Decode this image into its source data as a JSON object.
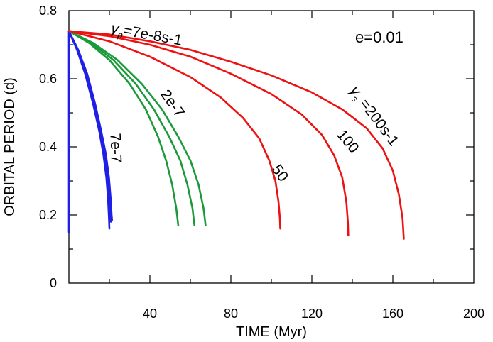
{
  "chart_data": {
    "type": "line",
    "xlabel": "TIME (Myr)",
    "ylabel": "ORBITAL PERIOD (d)",
    "xlim": [
      0,
      200
    ],
    "ylim": [
      0,
      0.8
    ],
    "x_ticks": [
      "40",
      "80",
      "120",
      "160",
      "200"
    ],
    "y_ticks": [
      "0",
      "0.2",
      "0.4",
      "0.6",
      "0.8"
    ],
    "grid": false,
    "eccentricity_label": "e=0.01",
    "colors": {
      "blue": "#1f1fe6",
      "green": "#1a9a3a",
      "red": "#ee1111"
    },
    "series": [
      {
        "group": "blue",
        "color": "#1f1fe6",
        "points": [
          [
            0,
            0.74
          ],
          [
            4,
            0.685
          ],
          [
            8,
            0.615
          ],
          [
            12,
            0.525
          ],
          [
            15,
            0.445
          ],
          [
            17,
            0.38
          ],
          [
            18.5,
            0.31
          ],
          [
            19.3,
            0.25
          ],
          [
            19.8,
            0.19
          ],
          [
            20,
            0.16
          ]
        ]
      },
      {
        "group": "blue",
        "color": "#1f1fe6",
        "points": [
          [
            0,
            0.74
          ],
          [
            4.3,
            0.685
          ],
          [
            8.5,
            0.615
          ],
          [
            12.5,
            0.525
          ],
          [
            15.5,
            0.445
          ],
          [
            17.6,
            0.38
          ],
          [
            19.2,
            0.31
          ],
          [
            20,
            0.25
          ],
          [
            20.5,
            0.2
          ],
          [
            20.7,
            0.18
          ]
        ]
      },
      {
        "group": "blue",
        "color": "#1f1fe6",
        "points": [
          [
            0,
            0.74
          ],
          [
            4.6,
            0.685
          ],
          [
            9,
            0.615
          ],
          [
            13,
            0.525
          ],
          [
            16,
            0.445
          ],
          [
            18.2,
            0.38
          ],
          [
            19.8,
            0.31
          ],
          [
            20.6,
            0.25
          ],
          [
            21.1,
            0.2
          ],
          [
            21.3,
            0.185
          ]
        ]
      },
      {
        "group": "blue",
        "color": "#1f1fe6",
        "points": [
          [
            0,
            0.74
          ],
          [
            0,
            0.15
          ]
        ]
      },
      {
        "group": "green",
        "color": "#1a9a3a",
        "points": [
          [
            0,
            0.74
          ],
          [
            10,
            0.705
          ],
          [
            20,
            0.655
          ],
          [
            30,
            0.585
          ],
          [
            38,
            0.51
          ],
          [
            44,
            0.43
          ],
          [
            48,
            0.36
          ],
          [
            51,
            0.29
          ],
          [
            53,
            0.22
          ],
          [
            54,
            0.17
          ]
        ]
      },
      {
        "group": "green",
        "color": "#1a9a3a",
        "points": [
          [
            0,
            0.74
          ],
          [
            11,
            0.705
          ],
          [
            22,
            0.655
          ],
          [
            33,
            0.585
          ],
          [
            42,
            0.51
          ],
          [
            49.5,
            0.43
          ],
          [
            55,
            0.36
          ],
          [
            58.5,
            0.29
          ],
          [
            61,
            0.22
          ],
          [
            62,
            0.17
          ]
        ]
      },
      {
        "group": "green",
        "color": "#1a9a3a",
        "points": [
          [
            0,
            0.74
          ],
          [
            12,
            0.705
          ],
          [
            24,
            0.655
          ],
          [
            36,
            0.585
          ],
          [
            46,
            0.51
          ],
          [
            54,
            0.43
          ],
          [
            60,
            0.36
          ],
          [
            64,
            0.29
          ],
          [
            66.5,
            0.22
          ],
          [
            67.5,
            0.17
          ]
        ]
      },
      {
        "group": "red",
        "color": "#ee1111",
        "points": [
          [
            0,
            0.74
          ],
          [
            20,
            0.71
          ],
          [
            40,
            0.665
          ],
          [
            60,
            0.605
          ],
          [
            75,
            0.545
          ],
          [
            86,
            0.485
          ],
          [
            94,
            0.425
          ],
          [
            99,
            0.36
          ],
          [
            102,
            0.3
          ],
          [
            103.5,
            0.24
          ],
          [
            104.2,
            0.19
          ],
          [
            104.4,
            0.16
          ]
        ]
      },
      {
        "group": "red",
        "color": "#ee1111",
        "points": [
          [
            0,
            0.74
          ],
          [
            20,
            0.725
          ],
          [
            40,
            0.7
          ],
          [
            60,
            0.665
          ],
          [
            80,
            0.615
          ],
          [
            100,
            0.555
          ],
          [
            115,
            0.495
          ],
          [
            125,
            0.435
          ],
          [
            131,
            0.375
          ],
          [
            135,
            0.31
          ],
          [
            137,
            0.24
          ],
          [
            137.8,
            0.18
          ],
          [
            138,
            0.14
          ]
        ]
      },
      {
        "group": "red",
        "color": "#ee1111",
        "points": [
          [
            0,
            0.74
          ],
          [
            20,
            0.73
          ],
          [
            40,
            0.71
          ],
          [
            60,
            0.685
          ],
          [
            80,
            0.65
          ],
          [
            100,
            0.61
          ],
          [
            120,
            0.56
          ],
          [
            135,
            0.51
          ],
          [
            147,
            0.455
          ],
          [
            155,
            0.395
          ],
          [
            160,
            0.33
          ],
          [
            163,
            0.26
          ],
          [
            164.8,
            0.19
          ],
          [
            165.4,
            0.13
          ]
        ]
      }
    ],
    "annotations": [
      {
        "text": "γp=7e-8s-1",
        "sym": "γ",
        "sub": "p",
        "rest": "=7e-8s-1",
        "x": 20.5,
        "y": 0.735,
        "rotate": 10
      },
      {
        "text": "2e-7",
        "x": 45,
        "y": 0.555,
        "rotate": 55
      },
      {
        "text": "7e-7",
        "x": 20.5,
        "y": 0.44,
        "rotate": 88
      },
      {
        "text": "50",
        "x": 100,
        "y": 0.335,
        "rotate": 55
      },
      {
        "text": "100",
        "x": 132,
        "y": 0.435,
        "rotate": 50
      },
      {
        "text": "γs =200s-1",
        "sym": "γ",
        "sub": "s",
        "rest": " =200s-1",
        "x": 138.5,
        "y": 0.565,
        "rotate": 53
      }
    ]
  }
}
